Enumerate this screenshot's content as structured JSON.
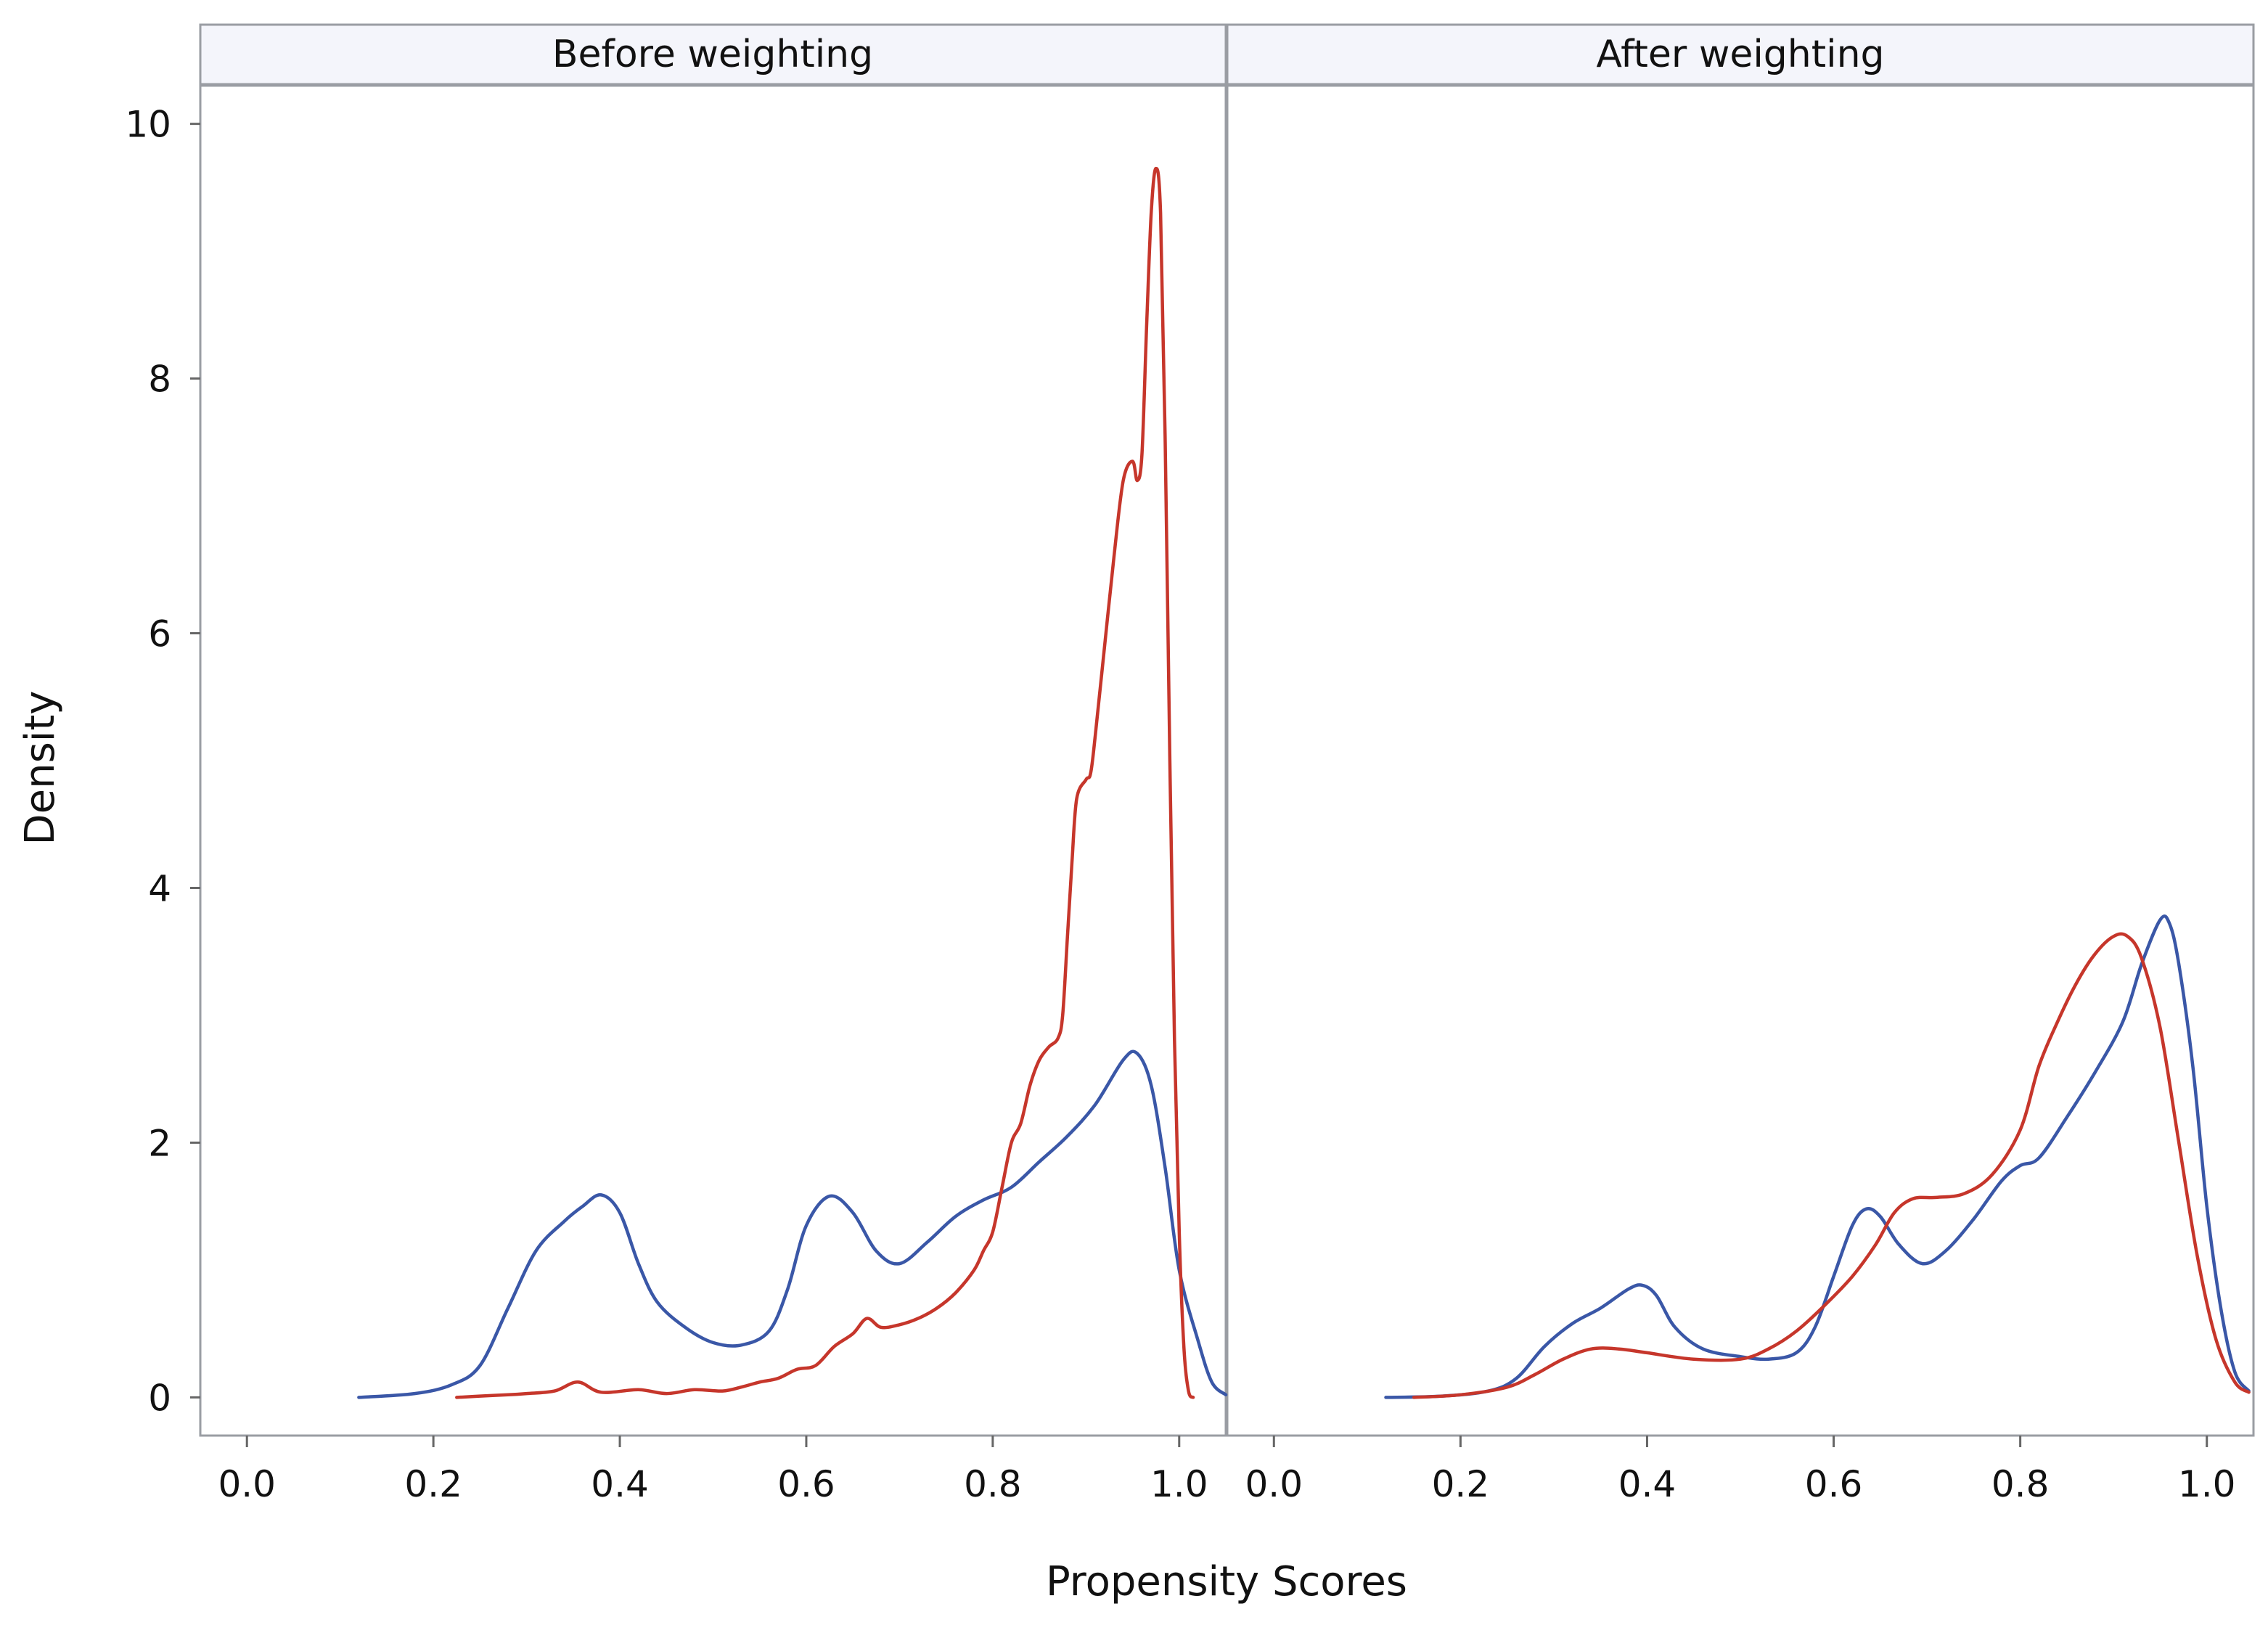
{
  "chart_data": {
    "type": "line",
    "xlabel": "Propensity Scores",
    "ylabel": "Density",
    "xlim": [
      -0.05,
      1.05
    ],
    "ylim": [
      -0.3,
      10.3
    ],
    "x_ticks": [
      "0.0",
      "0.2",
      "0.4",
      "0.6",
      "0.8",
      "1.0"
    ],
    "y_ticks": [
      "0",
      "2",
      "4",
      "6",
      "8",
      "10"
    ],
    "grid": false,
    "panels": [
      {
        "title": "Before weighting",
        "series": [
          {
            "color": "#3a57a7",
            "points": [
              [
                0.12,
                0
              ],
              [
                0.18,
                0.03
              ],
              [
                0.22,
                0.1
              ],
              [
                0.25,
                0.25
              ],
              [
                0.28,
                0.7
              ],
              [
                0.31,
                1.15
              ],
              [
                0.34,
                1.38
              ],
              [
                0.36,
                1.5
              ],
              [
                0.38,
                1.59
              ],
              [
                0.4,
                1.45
              ],
              [
                0.42,
                1.05
              ],
              [
                0.44,
                0.75
              ],
              [
                0.47,
                0.55
              ],
              [
                0.5,
                0.43
              ],
              [
                0.53,
                0.41
              ],
              [
                0.56,
                0.52
              ],
              [
                0.58,
                0.85
              ],
              [
                0.6,
                1.35
              ],
              [
                0.625,
                1.58
              ],
              [
                0.65,
                1.45
              ],
              [
                0.675,
                1.15
              ],
              [
                0.7,
                1.05
              ],
              [
                0.73,
                1.22
              ],
              [
                0.76,
                1.42
              ],
              [
                0.79,
                1.55
              ],
              [
                0.82,
                1.65
              ],
              [
                0.85,
                1.85
              ],
              [
                0.88,
                2.05
              ],
              [
                0.91,
                2.3
              ],
              [
                0.94,
                2.65
              ],
              [
                0.955,
                2.7
              ],
              [
                0.97,
                2.45
              ],
              [
                0.985,
                1.8
              ],
              [
                1.0,
                1.0
              ],
              [
                1.02,
                0.45
              ],
              [
                1.035,
                0.12
              ],
              [
                1.05,
                0.02
              ]
            ]
          },
          {
            "color": "#c6362b",
            "points": [
              [
                0.225,
                0
              ],
              [
                0.25,
                0.01
              ],
              [
                0.28,
                0.02
              ],
              [
                0.3,
                0.03
              ],
              [
                0.33,
                0.05
              ],
              [
                0.355,
                0.12
              ],
              [
                0.38,
                0.04
              ],
              [
                0.42,
                0.06
              ],
              [
                0.45,
                0.03
              ],
              [
                0.48,
                0.06
              ],
              [
                0.51,
                0.05
              ],
              [
                0.53,
                0.08
              ],
              [
                0.55,
                0.12
              ],
              [
                0.57,
                0.15
              ],
              [
                0.59,
                0.22
              ],
              [
                0.61,
                0.25
              ],
              [
                0.63,
                0.4
              ],
              [
                0.65,
                0.5
              ],
              [
                0.665,
                0.62
              ],
              [
                0.68,
                0.55
              ],
              [
                0.7,
                0.57
              ],
              [
                0.72,
                0.62
              ],
              [
                0.74,
                0.7
              ],
              [
                0.76,
                0.82
              ],
              [
                0.78,
                1.0
              ],
              [
                0.79,
                1.15
              ],
              [
                0.8,
                1.3
              ],
              [
                0.81,
                1.65
              ],
              [
                0.82,
                2.0
              ],
              [
                0.83,
                2.15
              ],
              [
                0.84,
                2.45
              ],
              [
                0.85,
                2.65
              ],
              [
                0.86,
                2.75
              ],
              [
                0.87,
                2.82
              ],
              [
                0.875,
                3.0
              ],
              [
                0.88,
                3.6
              ],
              [
                0.885,
                4.2
              ],
              [
                0.89,
                4.7
              ],
              [
                0.9,
                4.85
              ],
              [
                0.905,
                4.9
              ],
              [
                0.91,
                5.2
              ],
              [
                0.92,
                5.9
              ],
              [
                0.93,
                6.6
              ],
              [
                0.94,
                7.2
              ],
              [
                0.95,
                7.35
              ],
              [
                0.955,
                7.2
              ],
              [
                0.96,
                7.4
              ],
              [
                0.965,
                8.4
              ],
              [
                0.97,
                9.3
              ],
              [
                0.975,
                9.65
              ],
              [
                0.98,
                9.3
              ],
              [
                0.985,
                7.5
              ],
              [
                0.99,
                5.0
              ],
              [
                0.995,
                2.8
              ],
              [
                1.0,
                1.3
              ],
              [
                1.005,
                0.4
              ],
              [
                1.01,
                0.05
              ],
              [
                1.015,
                0
              ]
            ]
          }
        ]
      },
      {
        "title": "After weighting",
        "series": [
          {
            "color": "#3a57a7",
            "points": [
              [
                0.12,
                0
              ],
              [
                0.18,
                0.01
              ],
              [
                0.23,
                0.05
              ],
              [
                0.26,
                0.15
              ],
              [
                0.29,
                0.4
              ],
              [
                0.32,
                0.58
              ],
              [
                0.35,
                0.7
              ],
              [
                0.38,
                0.85
              ],
              [
                0.395,
                0.88
              ],
              [
                0.41,
                0.8
              ],
              [
                0.43,
                0.55
              ],
              [
                0.46,
                0.38
              ],
              [
                0.5,
                0.32
              ],
              [
                0.53,
                0.3
              ],
              [
                0.56,
                0.35
              ],
              [
                0.58,
                0.55
              ],
              [
                0.6,
                0.95
              ],
              [
                0.62,
                1.35
              ],
              [
                0.635,
                1.48
              ],
              [
                0.65,
                1.42
              ],
              [
                0.67,
                1.2
              ],
              [
                0.695,
                1.05
              ],
              [
                0.72,
                1.15
              ],
              [
                0.75,
                1.4
              ],
              [
                0.78,
                1.7
              ],
              [
                0.8,
                1.82
              ],
              [
                0.82,
                1.88
              ],
              [
                0.85,
                2.2
              ],
              [
                0.88,
                2.55
              ],
              [
                0.91,
                2.95
              ],
              [
                0.93,
                3.4
              ],
              [
                0.95,
                3.75
              ],
              [
                0.96,
                3.72
              ],
              [
                0.97,
                3.4
              ],
              [
                0.985,
                2.6
              ],
              [
                1.0,
                1.5
              ],
              [
                1.015,
                0.7
              ],
              [
                1.03,
                0.2
              ],
              [
                1.045,
                0.05
              ]
            ]
          },
          {
            "color": "#c6362b",
            "points": [
              [
                0.15,
                0
              ],
              [
                0.2,
                0.02
              ],
              [
                0.25,
                0.08
              ],
              [
                0.28,
                0.18
              ],
              [
                0.31,
                0.3
              ],
              [
                0.34,
                0.38
              ],
              [
                0.37,
                0.38
              ],
              [
                0.4,
                0.35
              ],
              [
                0.45,
                0.3
              ],
              [
                0.5,
                0.3
              ],
              [
                0.53,
                0.38
              ],
              [
                0.56,
                0.52
              ],
              [
                0.59,
                0.72
              ],
              [
                0.62,
                0.95
              ],
              [
                0.645,
                1.2
              ],
              [
                0.665,
                1.45
              ],
              [
                0.685,
                1.56
              ],
              [
                0.71,
                1.57
              ],
              [
                0.74,
                1.6
              ],
              [
                0.77,
                1.75
              ],
              [
                0.8,
                2.1
              ],
              [
                0.82,
                2.6
              ],
              [
                0.84,
                2.95
              ],
              [
                0.86,
                3.25
              ],
              [
                0.88,
                3.48
              ],
              [
                0.9,
                3.62
              ],
              [
                0.915,
                3.62
              ],
              [
                0.93,
                3.45
              ],
              [
                0.95,
                2.9
              ],
              [
                0.97,
                2.0
              ],
              [
                0.99,
                1.1
              ],
              [
                1.01,
                0.45
              ],
              [
                1.03,
                0.12
              ],
              [
                1.045,
                0.04
              ]
            ]
          }
        ]
      }
    ]
  }
}
